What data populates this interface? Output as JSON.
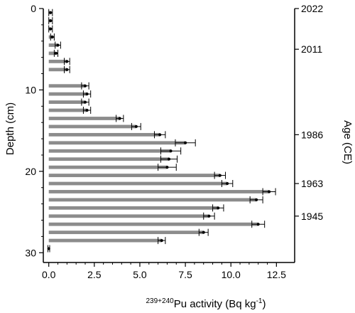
{
  "chart_data": {
    "type": "bar",
    "orientation": "horizontal",
    "xlabel": {
      "sup": "239+240",
      "main": "Pu activity (Bq kg",
      "sup2": "-1",
      "end": ")"
    },
    "ylabel_left": "Depth (cm)",
    "ylabel_right": "Age (CE)",
    "xlim": [
      -0.3,
      13.5
    ],
    "ylim": [
      0,
      31.2
    ],
    "xticks": [
      0,
      2.5,
      5,
      7.5,
      10,
      12.5
    ],
    "xtick_labels": [
      "0.0",
      "2.5",
      "5.0",
      "7.5",
      "10.0",
      "12.5"
    ],
    "yticks": [
      0,
      10,
      20,
      30
    ],
    "ytick_labels": [
      "0",
      "10",
      "20",
      "30"
    ],
    "age_ticks": [
      {
        "depth": 0,
        "label": "2022"
      },
      {
        "depth": 5,
        "label": "2011"
      },
      {
        "depth": 15.5,
        "label": "1986"
      },
      {
        "depth": 21.5,
        "label": "1963"
      },
      {
        "depth": 25.5,
        "label": "1945"
      }
    ],
    "bar_color": "#8c8c8c",
    "error_color": "#000000",
    "series": [
      {
        "depth": 0.5,
        "value": 0.1,
        "error": 0.1
      },
      {
        "depth": 1.5,
        "value": 0.1,
        "error": 0.1
      },
      {
        "depth": 2.5,
        "value": 0.1,
        "error": 0.1
      },
      {
        "depth": 3.5,
        "value": 0.2,
        "error": 0.1
      },
      {
        "depth": 4.5,
        "value": 0.5,
        "error": 0.15
      },
      {
        "depth": 5.5,
        "value": 0.4,
        "error": 0.1
      },
      {
        "depth": 6.5,
        "value": 1.0,
        "error": 0.15
      },
      {
        "depth": 7.5,
        "value": 1.0,
        "error": 0.15
      },
      {
        "depth": 9.5,
        "value": 2.0,
        "error": 0.2
      },
      {
        "depth": 10.5,
        "value": 2.1,
        "error": 0.2
      },
      {
        "depth": 11.5,
        "value": 2.0,
        "error": 0.2
      },
      {
        "depth": 12.5,
        "value": 2.1,
        "error": 0.2
      },
      {
        "depth": 13.5,
        "value": 3.9,
        "error": 0.2
      },
      {
        "depth": 14.5,
        "value": 4.8,
        "error": 0.25
      },
      {
        "depth": 15.5,
        "value": 6.1,
        "error": 0.3
      },
      {
        "depth": 16.5,
        "value": 7.5,
        "error": 0.55
      },
      {
        "depth": 17.5,
        "value": 6.7,
        "error": 0.55
      },
      {
        "depth": 18.5,
        "value": 6.6,
        "error": 0.45
      },
      {
        "depth": 19.5,
        "value": 6.5,
        "error": 0.5
      },
      {
        "depth": 20.5,
        "value": 9.4,
        "error": 0.3
      },
      {
        "depth": 21.5,
        "value": 9.8,
        "error": 0.3
      },
      {
        "depth": 22.5,
        "value": 12.1,
        "error": 0.35
      },
      {
        "depth": 23.5,
        "value": 11.4,
        "error": 0.35
      },
      {
        "depth": 24.5,
        "value": 9.3,
        "error": 0.3
      },
      {
        "depth": 25.5,
        "value": 8.8,
        "error": 0.3
      },
      {
        "depth": 26.5,
        "value": 11.5,
        "error": 0.35
      },
      {
        "depth": 27.5,
        "value": 8.5,
        "error": 0.25
      },
      {
        "depth": 28.5,
        "value": 6.2,
        "error": 0.2
      },
      {
        "depth": 29.5,
        "value": 0.0,
        "error": 0.05
      }
    ]
  }
}
